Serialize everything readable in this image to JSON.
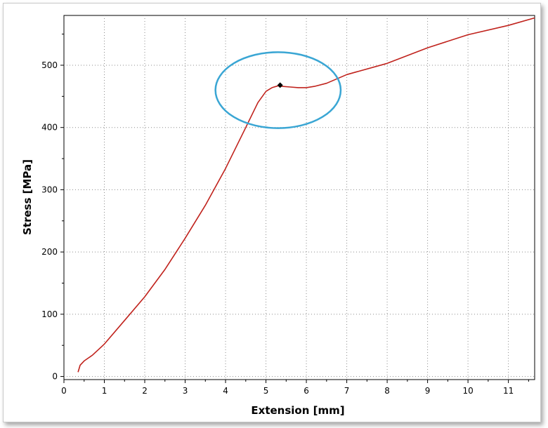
{
  "chart_data": {
    "type": "line",
    "xlabel": "Extension [mm]",
    "ylabel": "Stress [MPa]",
    "xlim": [
      0,
      11.65
    ],
    "ylim": [
      -5,
      580
    ],
    "xticks": [
      0,
      1,
      2,
      3,
      4,
      5,
      6,
      7,
      8,
      9,
      10,
      11
    ],
    "yticks": [
      0,
      100,
      200,
      300,
      400,
      500
    ],
    "grid": true,
    "grid_style": "dotted",
    "series": [
      {
        "color": "#c0221c",
        "x": [
          0.35,
          0.4,
          0.5,
          0.7,
          1.0,
          1.5,
          2.0,
          2.5,
          3.0,
          3.5,
          4.0,
          4.5,
          4.8,
          5.0,
          5.15,
          5.3,
          5.4,
          5.6,
          5.8,
          6.0,
          6.2,
          6.5,
          7.0,
          8.0,
          9.0,
          10.0,
          11.0,
          11.65
        ],
        "y": [
          7,
          18,
          25,
          34,
          52,
          90,
          128,
          172,
          222,
          275,
          334,
          400,
          440,
          458,
          464,
          467,
          466,
          465,
          464,
          464,
          466,
          471,
          485,
          503,
          528,
          549,
          564,
          576
        ]
      }
    ],
    "marker": {
      "x": 5.35,
      "y": 468,
      "color": "#000000",
      "shape": "diamond"
    },
    "annotation": {
      "shape": "ellipse",
      "color": "#3aa6d4",
      "cx": 5.3,
      "cy": 460,
      "rx": 1.55,
      "ry": 61
    }
  }
}
